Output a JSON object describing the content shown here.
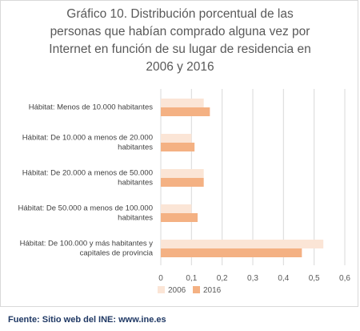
{
  "chart_data": {
    "type": "bar",
    "orientation": "horizontal",
    "title": "Gráfico 10. Distribución porcentual de las\npersonas que habían comprado alguna vez por\nInternet en función de su lugar de residencia en\n2006 y 2016",
    "categories": [
      "Hábitat: Menos de 10.000 habitantes",
      "Hábitat: De 10.000 a menos de 20.000\nhabitantes",
      "Hábitat: De 20.000 a menos de 50.000\nhabitantes",
      "Hábitat: De 50.000 a menos de 100.000\nhabitantes",
      "Hábitat: De 100.000 y más habitantes y\ncapitales de provincia"
    ],
    "series": [
      {
        "name": "2006",
        "color": "#fbe5d6",
        "values": [
          0.14,
          0.1,
          0.14,
          0.1,
          0.53
        ]
      },
      {
        "name": "2016",
        "color": "#f4b183",
        "values": [
          0.16,
          0.11,
          0.14,
          0.12,
          0.46
        ]
      }
    ],
    "xlim": [
      0,
      0.6
    ],
    "xticks": [
      "0",
      "0,1",
      "0,2",
      "0,3",
      "0,4",
      "0,5",
      "0,6"
    ],
    "grid": true,
    "legend_position": "bottom"
  },
  "source": "Fuente: Sitio web del INE: www.ine.es"
}
